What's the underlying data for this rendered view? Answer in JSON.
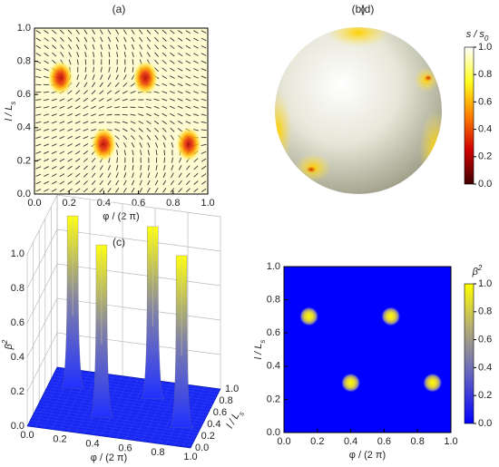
{
  "chart_data": [
    {
      "type": "vector-field",
      "title": "(a)",
      "xlabel": "φ / (2 π)",
      "ylabel": {
        "main": "l / L",
        "sub": "s"
      },
      "x": [
        0.15,
        0.64,
        0.4,
        0.89
      ],
      "y": [
        0.7,
        0.7,
        0.3,
        0.3
      ],
      "xlim": [
        0,
        1
      ],
      "ylim": [
        0,
        1
      ],
      "xticks": [
        {
          "value": 0,
          "label": "0.0"
        },
        0.2,
        0.4,
        0.6,
        0.8,
        {
          "value": 1,
          "label": "1.0"
        }
      ],
      "yticks": [
        {
          "value": 0,
          "label": "0.0"
        },
        0.2,
        0.4,
        0.6,
        0.8,
        {
          "value": 1,
          "label": "1.0"
        }
      ]
    },
    {
      "type": "sphere",
      "title": "(b)",
      "colorbar_label": {
        "main": "s / s",
        "sub": "0"
      },
      "clim": [
        0,
        1
      ],
      "cticks": [
        {
          "value": 0,
          "label": "0.0"
        },
        0.2,
        0.4,
        0.6,
        0.8,
        {
          "value": 1,
          "label": "1.0"
        }
      ]
    },
    {
      "type": "surface3d",
      "title": "(c)",
      "xlabel": "φ / (2 π)",
      "ylabel": {
        "main": "l / L",
        "sub": "s"
      },
      "zlabel": {
        "main": "β",
        "sup": "2"
      },
      "x": [
        0.15,
        0.64,
        0.4,
        0.89
      ],
      "y": [
        0.7,
        0.7,
        0.3,
        0.3
      ],
      "z": [
        1,
        1,
        1,
        1
      ],
      "xlim": [
        0,
        1
      ],
      "ylim": [
        0,
        1
      ],
      "zlim": [
        0,
        1
      ],
      "xticks": [
        {
          "value": 0,
          "label": "0.0"
        },
        0.2,
        0.4,
        0.6,
        0.8,
        {
          "value": 1,
          "label": "1.0"
        }
      ],
      "yticks": [
        {
          "value": 0,
          "label": "0.0"
        },
        0.2,
        0.4,
        0.6,
        0.8,
        {
          "value": 1,
          "label": "1.0"
        }
      ],
      "zticks": [
        {
          "value": 0,
          "label": "0.0"
        },
        0.2,
        0.4,
        0.6,
        0.8,
        {
          "value": 1,
          "label": "1.0"
        }
      ]
    },
    {
      "type": "heatmap",
      "title": "(d)",
      "xlabel": "φ / (2 π)",
      "ylabel": {
        "main": "l / L",
        "sub": "s"
      },
      "colorbar_label": {
        "main": "β",
        "sup": "2"
      },
      "x": [
        0.15,
        0.64,
        0.4,
        0.89
      ],
      "y": [
        0.7,
        0.7,
        0.3,
        0.3
      ],
      "xlim": [
        0,
        1
      ],
      "ylim": [
        0,
        1
      ],
      "clim": [
        0,
        1
      ],
      "xticks": [
        {
          "value": 0,
          "label": "0.0"
        },
        0.2,
        0.4,
        0.6,
        0.8,
        {
          "value": 1,
          "label": "1.0"
        }
      ],
      "yticks": [
        {
          "value": 0,
          "label": "0.0"
        },
        0.2,
        0.4,
        0.6,
        0.8,
        {
          "value": 1,
          "label": "1.0"
        }
      ],
      "cticks": [
        {
          "value": 0,
          "label": "0.0"
        },
        0.2,
        0.4,
        0.6,
        0.8,
        {
          "value": 1,
          "label": "1.0"
        }
      ]
    }
  ]
}
